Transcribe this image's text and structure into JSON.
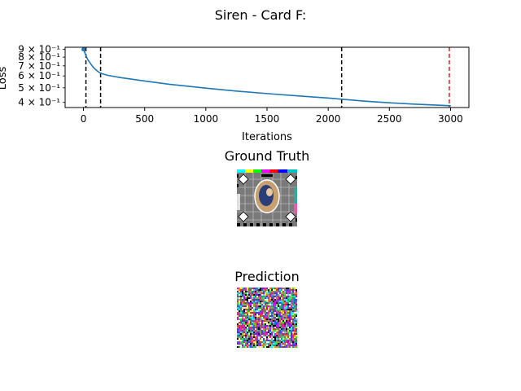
{
  "figure": {
    "suptitle": "Siren - Card F:",
    "gt_title": "Ground Truth",
    "pred_title": "Prediction"
  },
  "chart_data": {
    "type": "line",
    "title": "",
    "xlabel": "Iterations",
    "ylabel": "Loss",
    "yscale": "log",
    "xlim": [
      -150,
      3150
    ],
    "ylim": [
      0.37,
      0.93
    ],
    "x_ticks": [
      0,
      500,
      1000,
      1500,
      2000,
      2500,
      3000
    ],
    "x_tick_labels": [
      "0",
      "500",
      "1000",
      "1500",
      "2000",
      "2500",
      "3000"
    ],
    "y_ticks": [
      0.4,
      0.5,
      0.6,
      0.7,
      0.8,
      0.9
    ],
    "y_tick_labels": [
      "4 × 10⁻¹",
      "5 × 10⁻¹",
      "6 × 10⁻¹",
      "7 × 10⁻¹",
      "8 × 10⁻¹",
      "9 × 10⁻¹"
    ],
    "series": [
      {
        "color": "#1f77b4",
        "x": [
          0,
          5,
          10,
          20,
          30,
          40,
          60,
          80,
          100,
          120,
          140,
          200,
          300,
          500,
          700,
          1000,
          1250,
          1500,
          1750,
          2000,
          2110,
          2300,
          2500,
          2700,
          3000
        ],
        "y": [
          0.9,
          0.88,
          0.86,
          0.82,
          0.785,
          0.76,
          0.72,
          0.685,
          0.66,
          0.64,
          0.625,
          0.605,
          0.585,
          0.555,
          0.528,
          0.498,
          0.476,
          0.458,
          0.442,
          0.428,
          0.42,
          0.408,
          0.398,
          0.39,
          0.38
        ]
      }
    ],
    "vlines": [
      {
        "x": 20,
        "color": "#000000",
        "style": "dashed"
      },
      {
        "x": 140,
        "color": "#000000",
        "style": "dashed"
      },
      {
        "x": 2110,
        "color": "#000000",
        "style": "dashed"
      },
      {
        "x": 2990,
        "color": "#d62728",
        "style": "dashed"
      }
    ],
    "grid": false,
    "legend": "none"
  }
}
